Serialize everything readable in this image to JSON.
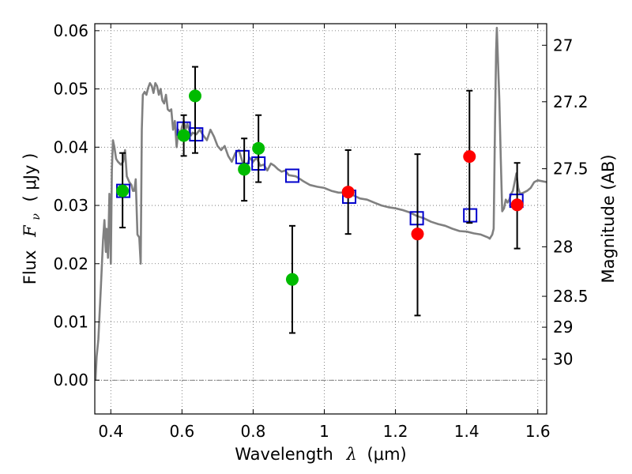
{
  "chart_data": {
    "type": "scatter",
    "xlabel_text": "Wavelength",
    "xlabel_symbol": "λ",
    "xlabel_unit": "(μm)",
    "ylabel_text": "Flux",
    "ylabel_symbol": "F",
    "ylabel_subscript": "ν",
    "ylabel_unit": "( μJy )",
    "right_label": "Magnitude (AB)",
    "xlim": [
      0.355,
      1.625
    ],
    "ylim": [
      -0.0058,
      0.0612
    ],
    "grid": true,
    "x_ticks": [
      0.4,
      0.6,
      0.8,
      1.0,
      1.2,
      1.4,
      1.6
    ],
    "x_tick_labels": [
      "0.4",
      "0.6",
      "0.8",
      "1",
      "1.2",
      "1.4",
      "1.6"
    ],
    "y_ticks": [
      0.0,
      0.01,
      0.02,
      0.03,
      0.04,
      0.05,
      0.06
    ],
    "y_tick_labels": [
      "0.00",
      "0.01",
      "0.02",
      "0.03",
      "0.04",
      "0.05",
      "0.06"
    ],
    "right_ticks": [
      {
        "label": "27",
        "flux": 0.0575
      },
      {
        "label": "27.2",
        "flux": 0.0478
      },
      {
        "label": "27.5",
        "flux": 0.0363
      },
      {
        "label": "28",
        "flux": 0.0229
      },
      {
        "label": "28.5",
        "flux": 0.0144
      },
      {
        "label": "29",
        "flux": 0.0091
      },
      {
        "label": "30",
        "flux": 0.0036
      }
    ],
    "colors": {
      "model": "#808080",
      "optical": "#00bb00",
      "nir": "#ff0000",
      "synthetic": "#0000cc",
      "errorbar": "#000000",
      "grid": "#666666"
    },
    "model_sed": [
      [
        0.357,
        0.0
      ],
      [
        0.36,
        0.004
      ],
      [
        0.365,
        0.007
      ],
      [
        0.372,
        0.016
      ],
      [
        0.378,
        0.024
      ],
      [
        0.382,
        0.0275
      ],
      [
        0.386,
        0.022
      ],
      [
        0.388,
        0.026
      ],
      [
        0.392,
        0.021
      ],
      [
        0.396,
        0.032
      ],
      [
        0.4,
        0.02
      ],
      [
        0.403,
        0.036
      ],
      [
        0.406,
        0.0412
      ],
      [
        0.41,
        0.04
      ],
      [
        0.415,
        0.038
      ],
      [
        0.42,
        0.0375
      ],
      [
        0.428,
        0.037
      ],
      [
        0.435,
        0.0375
      ],
      [
        0.44,
        0.0395
      ],
      [
        0.445,
        0.035
      ],
      [
        0.452,
        0.034
      ],
      [
        0.458,
        0.0335
      ],
      [
        0.462,
        0.0325
      ],
      [
        0.466,
        0.0325
      ],
      [
        0.47,
        0.0345
      ],
      [
        0.475,
        0.025
      ],
      [
        0.48,
        0.0245
      ],
      [
        0.484,
        0.02
      ],
      [
        0.487,
        0.043
      ],
      [
        0.49,
        0.049
      ],
      [
        0.495,
        0.0495
      ],
      [
        0.5,
        0.049
      ],
      [
        0.505,
        0.0502
      ],
      [
        0.51,
        0.051
      ],
      [
        0.515,
        0.0505
      ],
      [
        0.52,
        0.0493
      ],
      [
        0.525,
        0.051
      ],
      [
        0.53,
        0.0505
      ],
      [
        0.535,
        0.049
      ],
      [
        0.54,
        0.05
      ],
      [
        0.545,
        0.048
      ],
      [
        0.55,
        0.0475
      ],
      [
        0.555,
        0.049
      ],
      [
        0.56,
        0.0465
      ],
      [
        0.565,
        0.0462
      ],
      [
        0.57,
        0.0465
      ],
      [
        0.575,
        0.043
      ],
      [
        0.58,
        0.0445
      ],
      [
        0.585,
        0.04
      ],
      [
        0.59,
        0.043
      ],
      [
        0.595,
        0.042
      ],
      [
        0.6,
        0.0435
      ],
      [
        0.605,
        0.0445
      ],
      [
        0.61,
        0.043
      ],
      [
        0.615,
        0.044
      ],
      [
        0.62,
        0.043
      ],
      [
        0.625,
        0.042
      ],
      [
        0.63,
        0.0425
      ],
      [
        0.64,
        0.0422
      ],
      [
        0.65,
        0.043
      ],
      [
        0.66,
        0.042
      ],
      [
        0.67,
        0.0412
      ],
      [
        0.68,
        0.043
      ],
      [
        0.69,
        0.0418
      ],
      [
        0.7,
        0.0402
      ],
      [
        0.71,
        0.0395
      ],
      [
        0.72,
        0.0402
      ],
      [
        0.73,
        0.0385
      ],
      [
        0.74,
        0.0375
      ],
      [
        0.75,
        0.039
      ],
      [
        0.76,
        0.0395
      ],
      [
        0.77,
        0.0375
      ],
      [
        0.78,
        0.0362
      ],
      [
        0.79,
        0.0382
      ],
      [
        0.8,
        0.0375
      ],
      [
        0.81,
        0.0382
      ],
      [
        0.82,
        0.0368
      ],
      [
        0.83,
        0.037
      ],
      [
        0.84,
        0.036
      ],
      [
        0.85,
        0.0372
      ],
      [
        0.86,
        0.0368
      ],
      [
        0.87,
        0.0362
      ],
      [
        0.88,
        0.0358
      ],
      [
        0.89,
        0.036
      ],
      [
        0.9,
        0.0352
      ],
      [
        0.92,
        0.035
      ],
      [
        0.94,
        0.0342
      ],
      [
        0.96,
        0.0335
      ],
      [
        0.98,
        0.0332
      ],
      [
        1.0,
        0.033
      ],
      [
        1.02,
        0.0325
      ],
      [
        1.04,
        0.0322
      ],
      [
        1.06,
        0.0322
      ],
      [
        1.08,
        0.0318
      ],
      [
        1.1,
        0.0312
      ],
      [
        1.12,
        0.031
      ],
      [
        1.14,
        0.0305
      ],
      [
        1.16,
        0.03
      ],
      [
        1.18,
        0.0297
      ],
      [
        1.2,
        0.0295
      ],
      [
        1.22,
        0.0292
      ],
      [
        1.24,
        0.0288
      ],
      [
        1.26,
        0.0282
      ],
      [
        1.28,
        0.0278
      ],
      [
        1.3,
        0.0272
      ],
      [
        1.32,
        0.0268
      ],
      [
        1.34,
        0.0265
      ],
      [
        1.36,
        0.026
      ],
      [
        1.38,
        0.0256
      ],
      [
        1.4,
        0.0255
      ],
      [
        1.42,
        0.0252
      ],
      [
        1.44,
        0.025
      ],
      [
        1.46,
        0.0245
      ],
      [
        1.465,
        0.0243
      ],
      [
        1.472,
        0.025
      ],
      [
        1.476,
        0.026
      ],
      [
        1.48,
        0.045
      ],
      [
        1.483,
        0.0565
      ],
      [
        1.485,
        0.0605
      ],
      [
        1.488,
        0.055
      ],
      [
        1.492,
        0.048
      ],
      [
        1.496,
        0.038
      ],
      [
        1.5,
        0.029
      ],
      [
        1.505,
        0.0295
      ],
      [
        1.51,
        0.031
      ],
      [
        1.515,
        0.0305
      ],
      [
        1.52,
        0.031
      ],
      [
        1.525,
        0.032
      ],
      [
        1.53,
        0.0325
      ],
      [
        1.535,
        0.034
      ],
      [
        1.54,
        0.0355
      ],
      [
        1.545,
        0.033
      ],
      [
        1.55,
        0.032
      ],
      [
        1.56,
        0.0322
      ],
      [
        1.57,
        0.0325
      ],
      [
        1.58,
        0.033
      ],
      [
        1.59,
        0.034
      ],
      [
        1.6,
        0.0343
      ],
      [
        1.625,
        0.034
      ]
    ],
    "synthetic_photometry": [
      {
        "x": 0.435,
        "y": 0.0325
      },
      {
        "x": 0.605,
        "y": 0.0432
      },
      {
        "x": 0.64,
        "y": 0.0422
      },
      {
        "x": 0.77,
        "y": 0.0383
      },
      {
        "x": 0.815,
        "y": 0.0372
      },
      {
        "x": 0.91,
        "y": 0.0351
      },
      {
        "x": 1.07,
        "y": 0.0315
      },
      {
        "x": 1.26,
        "y": 0.0278
      },
      {
        "x": 1.41,
        "y": 0.0283
      },
      {
        "x": 1.54,
        "y": 0.0308
      }
    ],
    "optical_points": [
      {
        "x": 0.433,
        "y": 0.0325,
        "err_low": 0.0262,
        "err_high": 0.039
      },
      {
        "x": 0.605,
        "y": 0.042,
        "err_low": 0.0385,
        "err_high": 0.0455
      },
      {
        "x": 0.637,
        "y": 0.0488,
        "err_low": 0.039,
        "err_high": 0.0538
      },
      {
        "x": 0.775,
        "y": 0.0362,
        "err_low": 0.0308,
        "err_high": 0.0415
      },
      {
        "x": 0.815,
        "y": 0.0398,
        "err_low": 0.034,
        "err_high": 0.0455
      },
      {
        "x": 0.91,
        "y": 0.0173,
        "err_low": 0.0081,
        "err_high": 0.0265
      }
    ],
    "nir_points": [
      {
        "x": 1.067,
        "y": 0.0323,
        "err_low": 0.0251,
        "err_high": 0.0395
      },
      {
        "x": 1.262,
        "y": 0.0251,
        "err_low": 0.0111,
        "err_high": 0.0388
      },
      {
        "x": 1.408,
        "y": 0.0384,
        "err_low": 0.027,
        "err_high": 0.0497
      },
      {
        "x": 1.542,
        "y": 0.0301,
        "err_low": 0.0226,
        "err_high": 0.0373
      }
    ]
  }
}
